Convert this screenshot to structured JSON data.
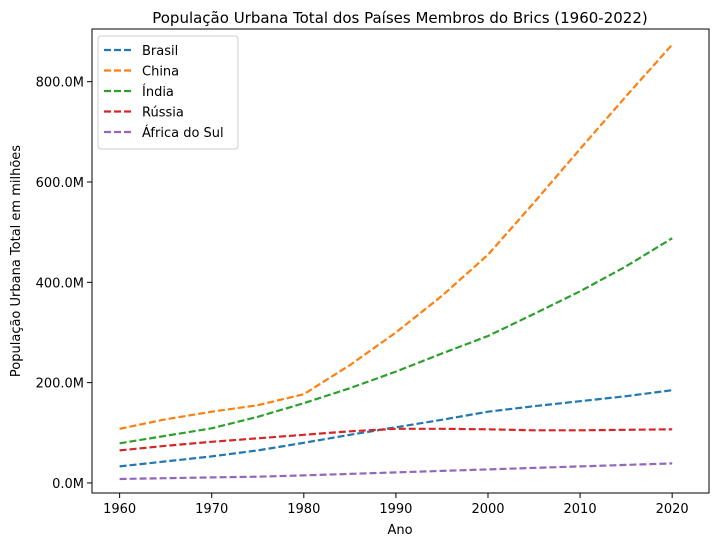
{
  "chart_data": {
    "type": "line",
    "title": "População Urbana Total dos Países Membros do Brics (1960-2022)",
    "xlabel": "Ano",
    "ylabel": "População Urbana Total em milhões",
    "xlim": [
      1957,
      2024
    ],
    "ylim": [
      -20,
      905
    ],
    "xticks": [
      1960,
      1970,
      1980,
      1990,
      2000,
      2010,
      2020
    ],
    "yticks": [
      0,
      200,
      400,
      600,
      800
    ],
    "ytick_labels": [
      "0.0M",
      "200.0M",
      "400.0M",
      "600.0M",
      "800.0M"
    ],
    "legend_position": "top-left",
    "line_style": "dashed",
    "grid": false,
    "x": [
      1960,
      1965,
      1970,
      1975,
      1980,
      1985,
      1990,
      1995,
      2000,
      2005,
      2010,
      2015,
      2020
    ],
    "series": [
      {
        "name": "Brasil",
        "color": "#1f77b4",
        "values": [
          33,
          43,
          53,
          65,
          80,
          96,
          111,
          126,
          142,
          153,
          163,
          173,
          185
        ]
      },
      {
        "name": "China",
        "color": "#ff7f0e",
        "values": [
          108,
          127,
          142,
          155,
          177,
          235,
          300,
          373,
          455,
          559,
          666,
          771,
          874
        ]
      },
      {
        "name": "Índia",
        "color": "#2ca02c",
        "values": [
          79,
          94,
          109,
          132,
          159,
          189,
          222,
          258,
          293,
          337,
          382,
          432,
          488
        ]
      },
      {
        "name": "Rússia",
        "color": "#d62728",
        "values": [
          65,
          74,
          82,
          89,
          96,
          103,
          108,
          108,
          107,
          105,
          105,
          106,
          107
        ]
      },
      {
        "name": "África do Sul",
        "color": "#9467bd",
        "values": [
          8,
          9.5,
          11,
          12.5,
          15,
          18,
          21,
          24,
          27,
          30,
          33,
          36,
          39
        ]
      }
    ]
  }
}
